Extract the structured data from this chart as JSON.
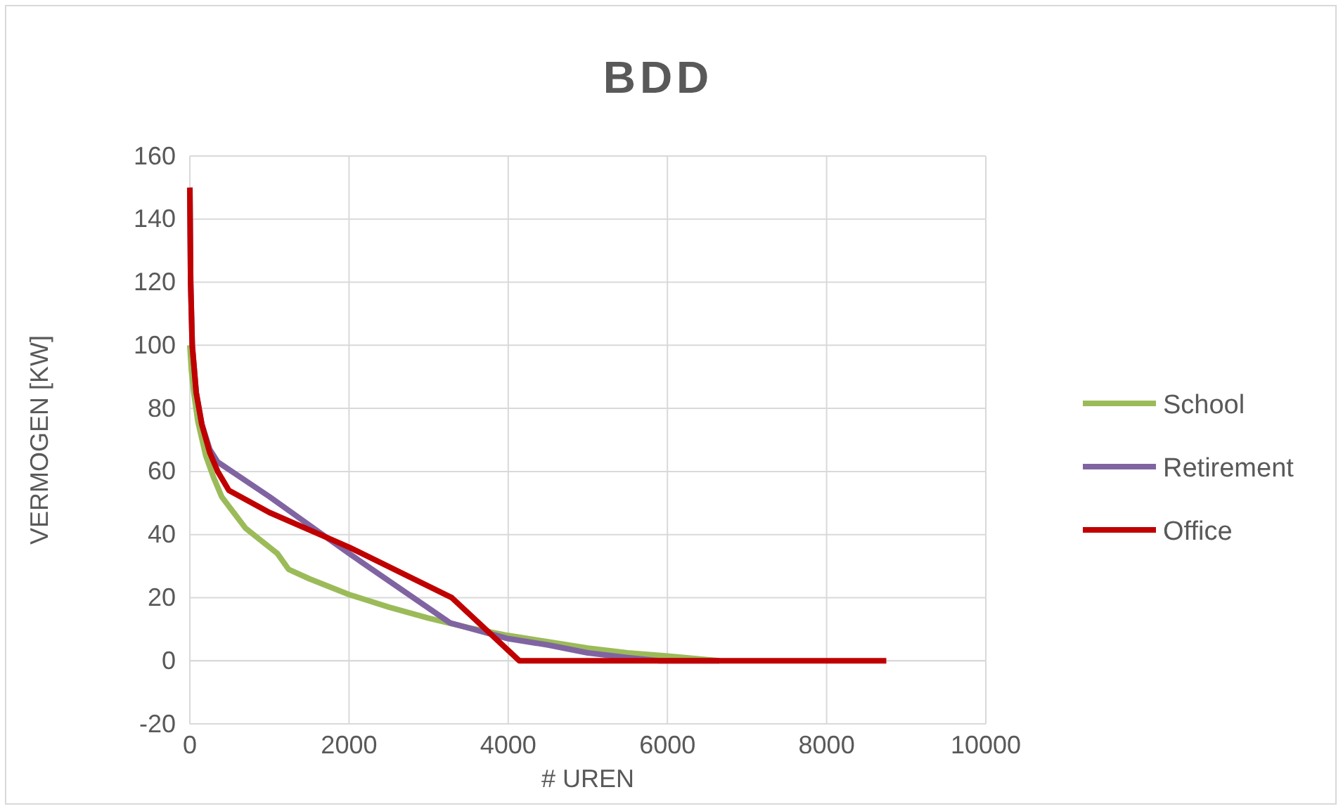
{
  "chart_data": {
    "type": "line",
    "title": "BDD",
    "xlabel": "# UREN",
    "ylabel": "VERMOGEN [KW]",
    "xlim": [
      0,
      10000
    ],
    "xticks": [
      0,
      2000,
      4000,
      6000,
      8000,
      10000
    ],
    "ylim": [
      -20,
      160
    ],
    "yticks": [
      -20,
      0,
      20,
      40,
      60,
      80,
      100,
      120,
      140,
      160
    ],
    "grid": true,
    "legend": "right",
    "marker": "none",
    "line_style": "solid",
    "series": [
      {
        "name": "School",
        "color": "#9bbb59",
        "x": [
          0,
          20,
          50,
          100,
          200,
          300,
          400,
          550,
          700,
          900,
          1100,
          1240,
          1500,
          2000,
          2500,
          3000,
          3500,
          4000,
          4500,
          5000,
          5500,
          6000,
          6650
        ],
        "values": [
          100,
          92,
          85,
          76,
          65,
          58,
          52,
          47,
          42,
          38,
          34,
          29,
          26,
          21,
          17,
          13.5,
          10.5,
          8,
          6,
          4,
          2.5,
          1.5,
          0
        ]
      },
      {
        "name": "Retirement",
        "color": "#8064a2",
        "x": [
          0,
          10,
          30,
          80,
          150,
          250,
          350,
          1000,
          2000,
          3270,
          4000,
          4500,
          5000,
          5500,
          5900,
          6650
        ],
        "values": [
          150,
          120,
          100,
          85,
          75,
          67,
          63,
          52,
          34,
          12,
          7,
          5,
          2.5,
          1,
          0,
          0
        ]
      },
      {
        "name": "Office",
        "color": "#c00000",
        "x": [
          0,
          10,
          30,
          80,
          150,
          250,
          350,
          490,
          1000,
          2000,
          3290,
          4140,
          8750
        ],
        "values": [
          150,
          120,
          100,
          85,
          75,
          66,
          60,
          54,
          47,
          36,
          20,
          0,
          0
        ]
      }
    ]
  }
}
